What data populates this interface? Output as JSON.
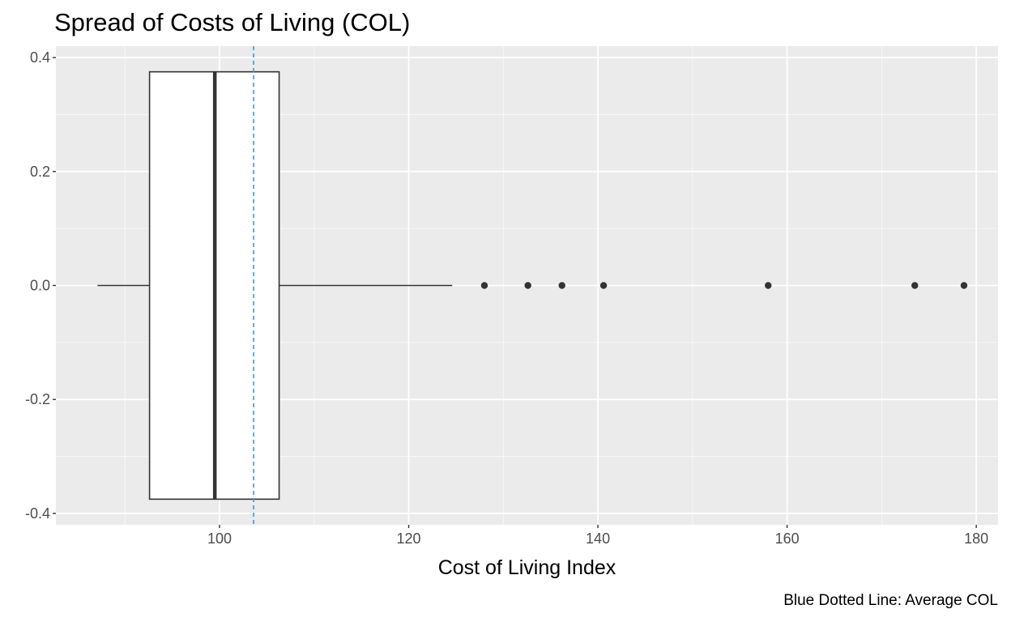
{
  "chart_data": {
    "type": "boxplot",
    "title": "Spread of Costs of Living (COL)",
    "caption": "Blue Dotted Line: Average COL",
    "xlabel": "Cost of Living Index",
    "ylabel": "",
    "xlim": [
      82.7,
      182.3
    ],
    "ylim": [
      -0.42,
      0.42
    ],
    "x_ticks": [
      100,
      120,
      140,
      160,
      180
    ],
    "x_tick_labels": [
      "100",
      "120",
      "140",
      "160",
      "180"
    ],
    "y_ticks": [
      -0.4,
      -0.2,
      0.0,
      0.2,
      0.4
    ],
    "y_tick_labels": [
      "-0.4",
      "-0.2",
      "0.0",
      "0.2",
      "0.4"
    ],
    "grid": true,
    "box": {
      "whisker_low": 87.1,
      "q1": 92.6,
      "median": 99.5,
      "q3": 106.3,
      "whisker_high": 124.6,
      "y_low": -0.375,
      "y_high": 0.375
    },
    "outliers": [
      128.0,
      132.6,
      136.2,
      140.6,
      158.0,
      173.5,
      178.7
    ],
    "mean": 103.6,
    "colors": {
      "panel": "#ebebeb",
      "grid_major": "#ffffff",
      "box_fill": "#ffffff",
      "box_line": "#333333",
      "mean_line": "#3a9ad9",
      "points": "#333333"
    }
  }
}
